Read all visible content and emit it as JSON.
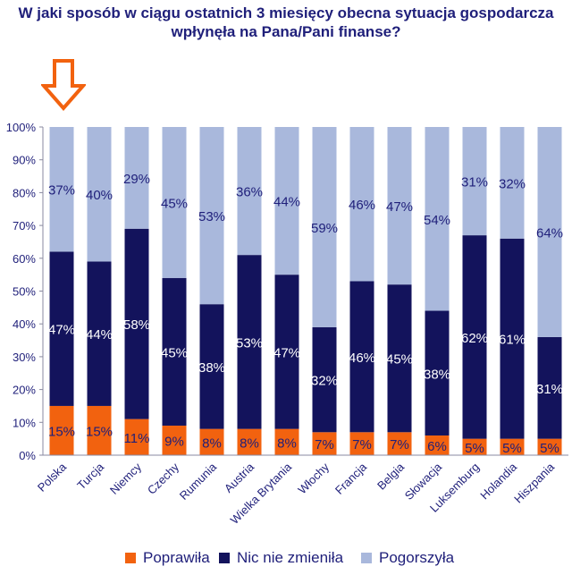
{
  "title_lines": [
    "W jaki sposób w ciągu ostatnich 3 miesięcy obecna sytuacja gospodarcza",
    "wpłynęła na Pana/Pani finanse?"
  ],
  "colors": {
    "improved": "#f2620f",
    "unchanged": "#13135c",
    "worse": "#a9b8dc",
    "text": "#1f1f7a",
    "arrow": "#f2620f"
  },
  "chart_data": {
    "type": "bar",
    "stacked": true,
    "title": "W jaki sposób w ciągu ostatnich 3 miesięcy obecna sytuacja gospodarcza wpłynęła na Pana/Pani finanse?",
    "categories": [
      "Polska",
      "Turcja",
      "Niemcy",
      "Czechy",
      "Rumunia",
      "Austria",
      "Wielka Brytania",
      "Włochy",
      "Francja",
      "Belgia",
      "Słowacja",
      "Luksemburg",
      "Holandia",
      "Hiszpania"
    ],
    "series": [
      {
        "name": "Poprawiła",
        "values": [
          15,
          15,
          11,
          9,
          8,
          8,
          8,
          7,
          7,
          7,
          6,
          5,
          5,
          5
        ]
      },
      {
        "name": "Nic nie zmieniła",
        "values": [
          47,
          44,
          58,
          45,
          38,
          53,
          47,
          32,
          46,
          45,
          38,
          62,
          61,
          31
        ]
      },
      {
        "name": "Pogorszyła",
        "values": [
          37,
          40,
          29,
          45,
          53,
          36,
          44,
          59,
          46,
          47,
          54,
          31,
          32,
          64
        ]
      }
    ],
    "y_ticks": [
      "0%",
      "10%",
      "20%",
      "30%",
      "40%",
      "50%",
      "60%",
      "70%",
      "80%",
      "90%",
      "100%"
    ],
    "ylim": [
      0,
      100
    ],
    "xlabel": "",
    "ylabel": "",
    "legend": "bottom"
  }
}
